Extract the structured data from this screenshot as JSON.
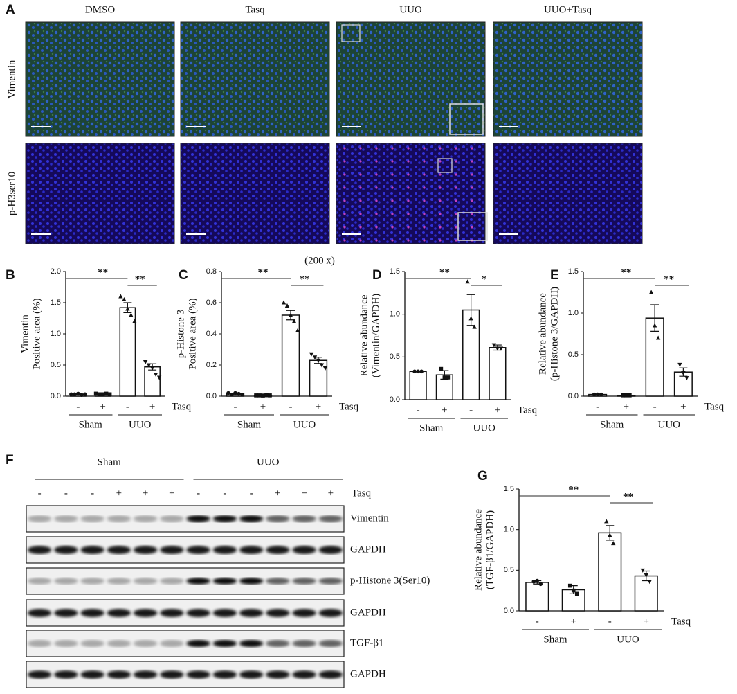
{
  "panel_labels": [
    "A",
    "B",
    "C",
    "D",
    "E",
    "F",
    "G"
  ],
  "micrographs": {
    "columns": [
      "DMSO",
      "Tasq",
      "UUO",
      "UUO+Tasq"
    ],
    "rows": [
      "Vimentin",
      "p-H3ser10"
    ],
    "magnification": "(200 x)"
  },
  "blot": {
    "groups": [
      "Sham",
      "UUO"
    ],
    "treatment_label": "Tasq",
    "treatment_signs": [
      "-",
      "-",
      "-",
      "+",
      "+",
      "+",
      "-",
      "-",
      "-",
      "+",
      "+",
      "+"
    ],
    "rows": [
      "Vimentin",
      "GAPDH",
      "p-Histone 3(Ser10)",
      "GAPDH",
      "TGF-β1",
      "GAPDH"
    ]
  },
  "chart_data": [
    {
      "type": "bar",
      "panel": "B",
      "ylabel": [
        "Vimentin",
        "Positive area (%)"
      ],
      "categories": [
        "-",
        "+",
        "-",
        "+"
      ],
      "groups": [
        "Sham",
        "UUO"
      ],
      "treatment": "Tasq",
      "color": "#ffffff",
      "values": [
        0.03,
        0.03,
        1.42,
        0.47
      ],
      "errors": [
        0.01,
        0.01,
        0.08,
        0.05
      ],
      "points": [
        [
          0.03,
          0.03,
          0.04,
          0.02,
          0.03
        ],
        [
          0.04,
          0.03,
          0.03,
          0.04,
          0.03
        ],
        [
          1.6,
          1.55,
          1.4,
          1.3,
          1.2
        ],
        [
          0.55,
          0.5,
          0.45,
          0.35,
          0.3
        ]
      ],
      "ylim": [
        0,
        2
      ],
      "yticks": [
        {
          "value": 0,
          "label": "0.0"
        },
        0.5,
        {
          "value": 1,
          "label": "1.0"
        },
        1.5,
        {
          "value": 2,
          "label": "2.0"
        }
      ],
      "significance": [
        {
          "from": 0,
          "to": 2,
          "label": "**"
        },
        {
          "from": 2,
          "to": 3,
          "label": "**"
        }
      ]
    },
    {
      "type": "bar",
      "panel": "C",
      "ylabel": [
        "p-Histone 3",
        "Positive area (%)"
      ],
      "categories": [
        "-",
        "+",
        "-",
        "+"
      ],
      "groups": [
        "Sham",
        "UUO"
      ],
      "treatment": "Tasq",
      "color": "#ffffff",
      "values": [
        0.015,
        0.005,
        0.52,
        0.23
      ],
      "errors": [
        0.003,
        0.002,
        0.03,
        0.02
      ],
      "points": [
        [
          0.02,
          0.01,
          0.02,
          0.015,
          0.01
        ],
        [
          0.005,
          0.005,
          0.004,
          0.006,
          0.005
        ],
        [
          0.6,
          0.58,
          0.52,
          0.48,
          0.42
        ],
        [
          0.27,
          0.25,
          0.23,
          0.2,
          0.18
        ]
      ],
      "ylim": [
        0,
        0.8
      ],
      "yticks": [
        {
          "value": 0,
          "label": "0.0"
        },
        0.2,
        0.4,
        0.6,
        0.8
      ],
      "significance": [
        {
          "from": 0,
          "to": 2,
          "label": "**"
        },
        {
          "from": 2,
          "to": 3,
          "label": "**"
        }
      ]
    },
    {
      "type": "bar",
      "panel": "D",
      "ylabel": [
        "Relative abundance",
        "(Vimentin/GAPDH)"
      ],
      "categories": [
        "-",
        "+",
        "-",
        "+"
      ],
      "groups": [
        "Sham",
        "UUO"
      ],
      "treatment": "Tasq",
      "color": "#ffffff",
      "values": [
        0.33,
        0.29,
        1.05,
        0.61
      ],
      "errors": [
        0.005,
        0.05,
        0.18,
        0.03
      ],
      "points": [
        [
          0.33,
          0.33,
          0.33
        ],
        [
          0.36,
          0.26,
          0.26
        ],
        [
          1.38,
          0.95,
          0.85
        ],
        [
          0.64,
          0.6,
          0.6
        ]
      ],
      "ylim": [
        0,
        1.5
      ],
      "yticks": [
        {
          "value": 0,
          "label": "0.0"
        },
        0.5,
        {
          "value": 1,
          "label": "1.0"
        },
        1.5
      ],
      "significance": [
        {
          "from": 0,
          "to": 2,
          "label": "**"
        },
        {
          "from": 2,
          "to": 3,
          "label": "*"
        }
      ]
    },
    {
      "type": "bar",
      "panel": "E",
      "ylabel": [
        "Relative abundance",
        "(p-Histone 3/GAPDH)"
      ],
      "categories": [
        "-",
        "+",
        "-",
        "+"
      ],
      "groups": [
        "Sham",
        "UUO"
      ],
      "treatment": "Tasq",
      "color": "#ffffff",
      "values": [
        0.02,
        0.01,
        0.94,
        0.29
      ],
      "errors": [
        0.005,
        0.003,
        0.16,
        0.05
      ],
      "points": [
        [
          0.02,
          0.02,
          0.02
        ],
        [
          0.01,
          0.01,
          0.01
        ],
        [
          1.25,
          0.85,
          0.7
        ],
        [
          0.38,
          0.28,
          0.22
        ]
      ],
      "ylim": [
        0,
        1.5
      ],
      "yticks": [
        {
          "value": 0,
          "label": "0.0"
        },
        0.5,
        {
          "value": 1,
          "label": "1.0"
        },
        1.5
      ],
      "significance": [
        {
          "from": 0,
          "to": 2,
          "label": "**"
        },
        {
          "from": 2,
          "to": 3,
          "label": "**"
        }
      ]
    },
    {
      "type": "bar",
      "panel": "G",
      "ylabel": [
        "Relative abundance",
        "(TGF-β1/GAPDH)"
      ],
      "categories": [
        "-",
        "+",
        "-",
        "+"
      ],
      "groups": [
        "Sham",
        "UUO"
      ],
      "treatment": "Tasq",
      "color": "#ffffff",
      "values": [
        0.35,
        0.26,
        0.96,
        0.43
      ],
      "errors": [
        0.02,
        0.05,
        0.09,
        0.06
      ],
      "points": [
        [
          0.36,
          0.37,
          0.33
        ],
        [
          0.31,
          0.25,
          0.21
        ],
        [
          1.1,
          0.93,
          0.83
        ],
        [
          0.5,
          0.44,
          0.36
        ]
      ],
      "ylim": [
        0,
        1.5
      ],
      "yticks": [
        {
          "value": 0,
          "label": "0.0"
        },
        0.5,
        {
          "value": 1,
          "label": "1.0"
        },
        1.5
      ],
      "significance": [
        {
          "from": 0,
          "to": 2,
          "label": "**"
        },
        {
          "from": 2,
          "to": 3,
          "label": "**"
        }
      ]
    }
  ]
}
